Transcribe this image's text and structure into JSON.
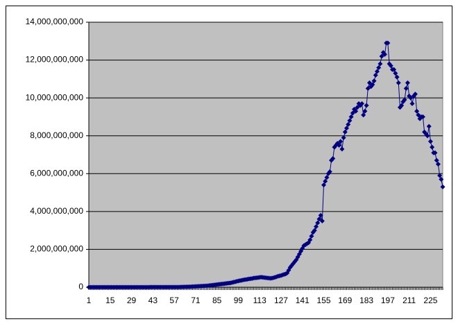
{
  "chart_data": {
    "type": "line",
    "color": "#000080",
    "marker": "diamond",
    "grid": true,
    "categories": [
      1,
      null,
      null,
      null,
      null,
      null,
      null,
      null,
      null,
      null,
      null,
      null,
      null,
      null,
      15,
      null,
      null,
      null,
      null,
      null,
      null,
      null,
      null,
      null,
      null,
      null,
      null,
      null,
      29,
      null,
      null,
      null,
      null,
      null,
      null,
      null,
      null,
      null,
      null,
      null,
      null,
      null,
      43,
      null,
      null,
      null,
      null,
      null,
      null,
      null,
      null,
      null,
      null,
      null,
      null,
      null,
      57,
      null,
      null,
      null,
      null,
      null,
      null,
      null,
      null,
      null,
      null,
      null,
      null,
      null,
      71,
      null,
      null,
      null,
      null,
      null,
      null,
      null,
      null,
      null,
      null,
      null,
      null,
      null,
      85,
      null,
      null,
      null,
      null,
      null,
      null,
      null,
      null,
      null,
      null,
      null,
      null,
      null,
      99,
      null,
      null,
      null,
      null,
      null,
      null,
      null,
      null,
      null,
      null,
      null,
      null,
      null,
      113,
      null,
      null,
      null,
      null,
      null,
      null,
      null,
      null,
      null,
      null,
      null,
      null,
      null,
      127,
      null,
      null,
      null,
      null,
      null,
      null,
      null,
      null,
      null,
      null,
      null,
      null,
      null,
      141,
      null,
      null,
      null,
      null,
      null,
      null,
      null,
      null,
      null,
      null,
      null,
      null,
      null,
      155,
      null,
      null,
      null,
      null,
      null,
      null,
      null,
      null,
      null,
      null,
      null,
      null,
      null,
      169,
      null,
      null,
      null,
      null,
      null,
      null,
      null,
      null,
      null,
      null,
      null,
      null,
      null,
      183,
      null,
      null,
      null,
      null,
      null,
      null,
      null,
      null,
      null,
      null,
      null,
      null,
      null,
      197,
      null,
      null,
      null,
      null,
      null,
      null,
      null,
      null,
      null,
      null,
      null,
      null,
      null,
      211,
      null,
      null,
      null,
      null,
      null,
      null,
      null,
      null,
      null,
      null,
      null,
      null,
      null,
      225,
      null,
      null,
      null,
      null,
      null,
      null,
      null,
      null
    ],
    "values": [
      0,
      0,
      0,
      0,
      0,
      0,
      0,
      0,
      0,
      0,
      0,
      0,
      0,
      0,
      0,
      0,
      0,
      0,
      0,
      0,
      2000000.0,
      2000000.0,
      2000000.0,
      2000000.0,
      2000000.0,
      2000000.0,
      2000000.0,
      2000000.0,
      2000000.0,
      2000000.0,
      2000000.0,
      2000000.0,
      2000000.0,
      2000000.0,
      2000000.0,
      2000000.0,
      2000000.0,
      2000000.0,
      2000000.0,
      2000000.0,
      5000000.0,
      5000000.0,
      5000000.0,
      5000000.0,
      5000000.0,
      5000000.0,
      5000000.0,
      5000000.0,
      5000000.0,
      5000000.0,
      5000000.0,
      5000000.0,
      5000000.0,
      5000000.0,
      5000000.0,
      5000000.0,
      5000000.0,
      5000000.0,
      5000000.0,
      5000000.0,
      10000000.0,
      12000000.0,
      15000000.0,
      18000000.0,
      20000000.0,
      22000000.0,
      25000000.0,
      28000000.0,
      30000000.0,
      35000000.0,
      40000000.0,
      45000000.0,
      50000000.0,
      55000000.0,
      60000000.0,
      65000000.0,
      70000000.0,
      75000000.0,
      80000000.0,
      90000000.0,
      100000000.0,
      110000000.0,
      120000000.0,
      130000000.0,
      140000000.0,
      150000000.0,
      160000000.0,
      170000000.0,
      180000000.0,
      190000000.0,
      200000000.0,
      210000000.0,
      220000000.0,
      230000000.0,
      250000000.0,
      270000000.0,
      290000000.0,
      310000000.0,
      330000000.0,
      350000000.0,
      360000000.0,
      380000000.0,
      400000000.0,
      410000000.0,
      420000000.0,
      440000000.0,
      450000000.0,
      460000000.0,
      480000000.0,
      490000000.0,
      500000000.0,
      510000000.0,
      520000000.0,
      530000000.0,
      520000000.0,
      510000000.0,
      500000000.0,
      490000000.0,
      480000000.0,
      470000000.0,
      480000000.0,
      500000000.0,
      520000000.0,
      550000000.0,
      580000000.0,
      600000000.0,
      620000000.0,
      650000000.0,
      680000000.0,
      700000000.0,
      750000000.0,
      900000000.0,
      1050000000.0,
      1150000000.0,
      1250000000.0,
      1350000000.0,
      1450000000.0,
      1600000000.0,
      1750000000.0,
      1900000000.0,
      2050000000.0,
      2200000000.0,
      2250000000.0,
      2300000000.0,
      2350000000.0,
      2500000000.0,
      2700000000.0,
      2900000000.0,
      3000000000.0,
      3200000000.0,
      3400000000.0,
      3600000000.0,
      3800000000.0,
      3500000000.0,
      5400000000.0,
      5600000000.0,
      5800000000.0,
      6000000000.0,
      6100000000.0,
      6700000000.0,
      6800000000.0,
      7400000000.0,
      7500000000.0,
      7600000000.0,
      7500000000.0,
      7700000000.0,
      7300000000.0,
      7900000000.0,
      8200000000.0,
      8400000000.0,
      8600000000.0,
      8800000000.0,
      9000000000.0,
      9200000000.0,
      9400000000.0,
      9300000000.0,
      9500000000.0,
      9700000000.0,
      9600000000.0,
      9700000000.0,
      9100000000.0,
      9300000000.0,
      9600000000.0,
      10500000000.0,
      10800000000.0,
      10600000000.0,
      10700000000.0,
      10900000000.0,
      11200000000.0,
      11400000000.0,
      11600000000.0,
      11800000000.0,
      12200000000.0,
      12400000000.0,
      12300000000.0,
      12900000000.0,
      12900000000.0,
      11800000000.0,
      11700000000.0,
      11500000000.0,
      11500000000.0,
      11300000000.0,
      11100000000.0,
      10800000000.0,
      9500000000.0,
      9600000000.0,
      9800000000.0,
      9900000000.0,
      10500000000.0,
      10800000000.0,
      10100000000.0,
      10000000000.0,
      9700000000.0,
      10100000000.0,
      10200000000.0,
      9300000000.0,
      9100000000.0,
      8900000000.0,
      9000000000.0,
      9000000000.0,
      8200000000.0,
      8100000000.0,
      8000000000.0,
      8500000000.0,
      7700000000.0,
      7400000000.0,
      7100000000.0,
      7100000000.0,
      6700000000.0,
      6500000000.0,
      5900000000.0,
      5700000000.0,
      5300000000.0
    ],
    "ylim": [
      0,
      14000000000
    ],
    "yticks": [
      0,
      {
        "value": 2000000000,
        "label": "2,000,000,000"
      },
      {
        "value": 4000000000,
        "label": "4,000,000,000"
      },
      {
        "value": 6000000000,
        "label": "6,000,000,000"
      },
      {
        "value": 8000000000,
        "label": "8,000,000,000"
      },
      {
        "value": 10000000000,
        "label": "10,000,000,000"
      },
      {
        "value": 12000000000,
        "label": "12,000,000,000"
      },
      {
        "value": 14000000000,
        "label": "14,000,000,000"
      }
    ]
  }
}
